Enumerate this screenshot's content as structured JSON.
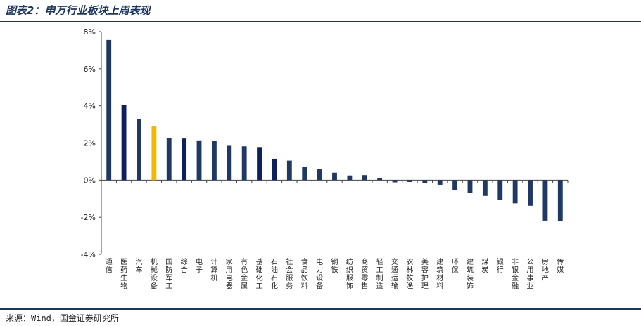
{
  "header": {
    "title": "图表2：申万行业板块上周表现"
  },
  "footer": {
    "source": "来源：Wind，国金证券研究所"
  },
  "chart_data": {
    "type": "bar",
    "title": "",
    "xlabel": "",
    "ylabel": "",
    "ylim": [
      -4,
      8
    ],
    "yticks": [
      -4,
      -2,
      0,
      2,
      4,
      6,
      8
    ],
    "ytick_labels": [
      "-4%",
      "-2%",
      "0%",
      "2%",
      "4%",
      "6%",
      "8%"
    ],
    "grid": false,
    "categories": [
      "通信",
      "医药生物",
      "汽车",
      "机械设备",
      "国防军工",
      "综合",
      "电子",
      "计算机",
      "家用电器",
      "有色金属",
      "基础化工",
      "石油石化",
      "社会服务",
      "食品饮料",
      "电力设备",
      "钢铁",
      "纺织服饰",
      "商贸零售",
      "轻工制造",
      "交通运输",
      "农林牧渔",
      "美容护理",
      "建筑材料",
      "环保",
      "建筑装饰",
      "煤炭",
      "银行",
      "非银金融",
      "公用事业",
      "房地产",
      "传媒"
    ],
    "values": [
      7.55,
      4.05,
      3.28,
      2.92,
      2.27,
      2.24,
      2.14,
      2.12,
      1.85,
      1.82,
      1.78,
      1.15,
      1.05,
      0.7,
      0.58,
      0.4,
      0.25,
      0.27,
      0.12,
      -0.12,
      -0.1,
      -0.15,
      -0.25,
      -0.52,
      -0.7,
      -0.85,
      -1.05,
      -1.25,
      -1.38,
      -2.18,
      -2.2
    ],
    "bar_colors": [
      "#1f3864",
      "#0d1f5c",
      "#1f3864",
      "#f5b800",
      "#1f3864",
      "#0d1f5c",
      "#1f3864",
      "#1f3864",
      "#1f3864",
      "#1f3864",
      "#0d1f5c",
      "#0d1f5c",
      "#1f3864",
      "#1f3864",
      "#1f3864",
      "#1f3864",
      "#1f3864",
      "#1f3864",
      "#1f3864",
      "#1f3864",
      "#1f3864",
      "#1f3864",
      "#1f3864",
      "#1f3864",
      "#1f3864",
      "#1f3864",
      "#1f3864",
      "#1f3864",
      "#1f3864",
      "#1f3864",
      "#1f3864"
    ]
  }
}
